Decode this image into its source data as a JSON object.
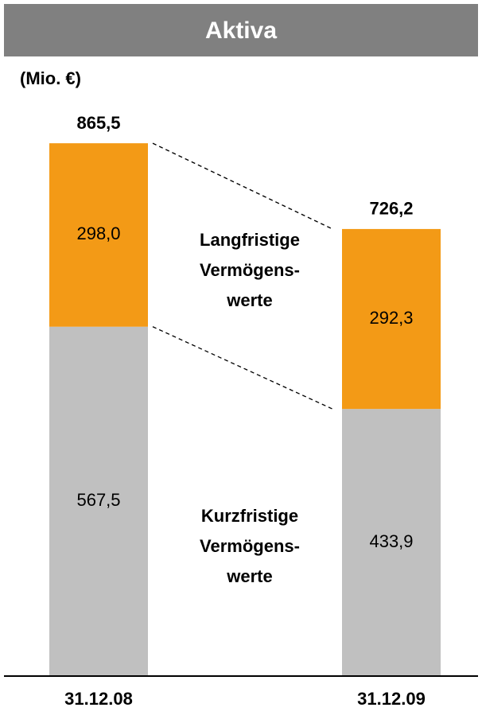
{
  "chart_data": {
    "type": "stacked_bar",
    "title": "Aktiva",
    "unit_label": "(Mio. €)",
    "categories": [
      "31.12.08",
      "31.12.09"
    ],
    "series": [
      {
        "name": "Kurzfristige Vermögens-werte",
        "color": "#c0c0c0",
        "values": [
          567.5,
          433.9
        ],
        "value_labels": [
          "567,5",
          "433,9"
        ]
      },
      {
        "name": "Langfristige Vermögens-werte",
        "color": "#f39a16",
        "values": [
          298.0,
          292.3
        ],
        "value_labels": [
          "298,0",
          "292,3"
        ]
      }
    ],
    "totals": [
      865.5,
      726.2
    ],
    "total_labels": [
      "865,5",
      "726,2"
    ],
    "ylim": [
      0,
      1000
    ]
  }
}
